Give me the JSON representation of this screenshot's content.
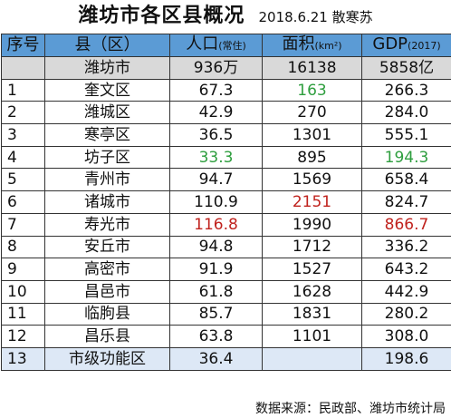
{
  "title": {
    "main": "潍坊市各区县概况",
    "sub": "2018.6.21 散寒苏"
  },
  "headers": {
    "index": "序号",
    "county": "县（区）",
    "population": "人口",
    "population_unit": "(常住)",
    "area": "面积",
    "area_unit": "(km²)",
    "gdp": "GDP",
    "gdp_unit": "(2017)"
  },
  "total": {
    "name": "潍坊市",
    "population": "936万",
    "area": "16138",
    "gdp": "5858亿"
  },
  "rows": [
    {
      "idx": "1",
      "name": "奎文区",
      "population": "67.3",
      "area": "163",
      "gdp": "266.3"
    },
    {
      "idx": "2",
      "name": "潍城区",
      "population": "42.9",
      "area": "270",
      "gdp": "284.0"
    },
    {
      "idx": "3",
      "name": "寒亭区",
      "population": "36.5",
      "area": "1301",
      "gdp": "555.1"
    },
    {
      "idx": "4",
      "name": "坊子区",
      "population": "33.3",
      "area": "895",
      "gdp": "194.3"
    },
    {
      "idx": "5",
      "name": "青州市",
      "population": "94.7",
      "area": "1569",
      "gdp": "658.4"
    },
    {
      "idx": "6",
      "name": "诸城市",
      "population": "110.9",
      "area": "2151",
      "gdp": "824.7"
    },
    {
      "idx": "7",
      "name": "寿光市",
      "population": "116.8",
      "area": "1990",
      "gdp": "866.7"
    },
    {
      "idx": "8",
      "name": "安丘市",
      "population": "94.8",
      "area": "1712",
      "gdp": "336.2"
    },
    {
      "idx": "9",
      "name": "高密市",
      "population": "91.9",
      "area": "1527",
      "gdp": "643.2"
    },
    {
      "idx": "10",
      "name": "昌邑市",
      "population": "61.8",
      "area": "1628",
      "gdp": "442.9"
    },
    {
      "idx": "11",
      "name": "临朐县",
      "population": "85.7",
      "area": "1831",
      "gdp": "280.2"
    },
    {
      "idx": "12",
      "name": "昌乐县",
      "population": "63.8",
      "area": "1101",
      "gdp": "308.0"
    },
    {
      "idx": "13",
      "name": "市级功能区",
      "population": "36.4",
      "area": "",
      "gdp": "198.6"
    }
  ],
  "highlight_colors": {
    "min": "#2e9e3e",
    "max": "#c0231e",
    "header": "#5b9bd5"
  },
  "source": "数据来源：民政部、潍坊市统计局"
}
